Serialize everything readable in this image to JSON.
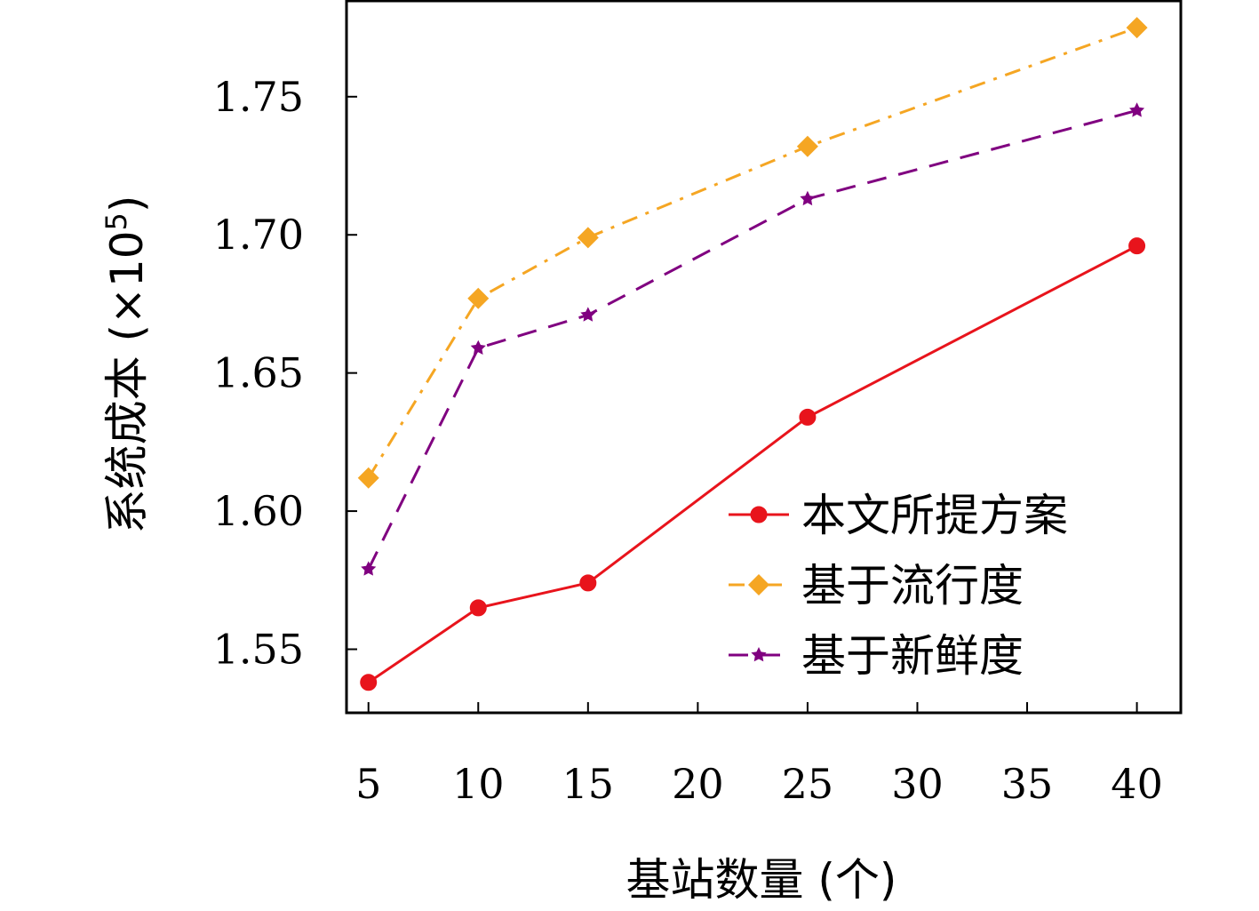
{
  "chart_data": {
    "type": "line",
    "xlabel": "基站数量 (个)",
    "ylabel": "系统成本 (×10",
    "ylabel_exponent": "5",
    "ylabel_suffix": ")",
    "x_ticks": [
      "5",
      "10",
      "15",
      "20",
      "25",
      "30",
      "35",
      "40"
    ],
    "y_ticks": [
      "1.55",
      "1.60",
      "1.65",
      "1.70",
      "1.75"
    ],
    "xlim": [
      4.0,
      42.0
    ],
    "ylim": [
      1.527,
      1.785
    ],
    "grid": false,
    "legend_position": "bottom-right",
    "series": [
      {
        "name": "本文所提方案",
        "color": "#e8141c",
        "marker": "circle",
        "dash": "solid",
        "x": [
          5,
          10,
          15,
          25,
          40
        ],
        "y": [
          1.538,
          1.565,
          1.574,
          1.634,
          1.696
        ]
      },
      {
        "name": "基于流行度",
        "color": "#f5a623",
        "marker": "diamond",
        "dash": "dashdot",
        "x": [
          5,
          10,
          15,
          25,
          40
        ],
        "y": [
          1.612,
          1.677,
          1.699,
          1.732,
          1.775
        ]
      },
      {
        "name": "基于新鲜度",
        "color": "#800080",
        "marker": "star",
        "dash": "dashed",
        "x": [
          5,
          10,
          15,
          25,
          40
        ],
        "y": [
          1.579,
          1.659,
          1.671,
          1.713,
          1.745
        ]
      }
    ]
  }
}
